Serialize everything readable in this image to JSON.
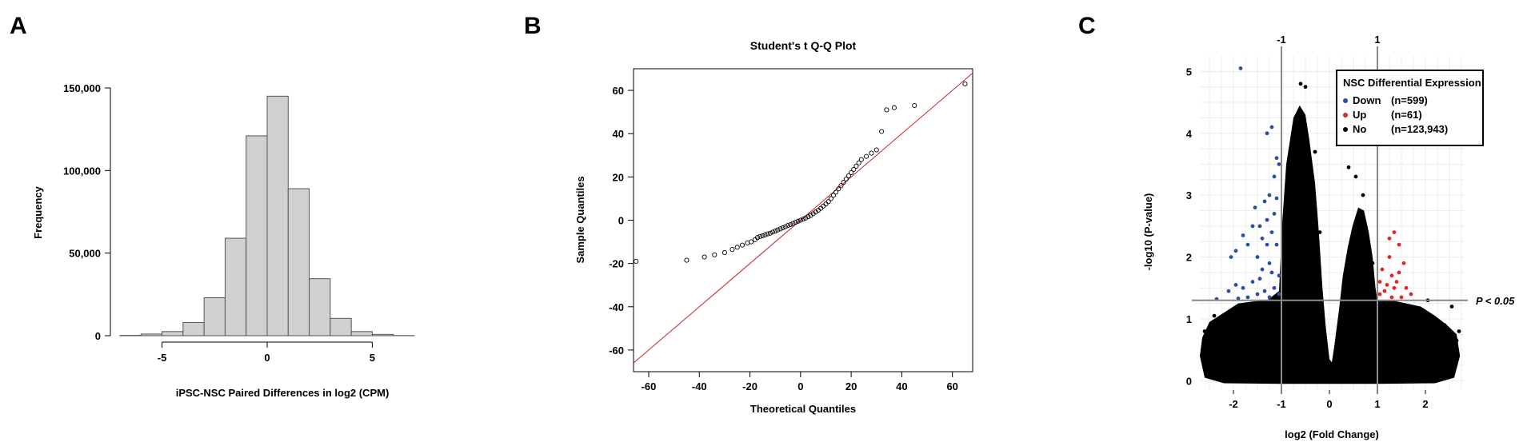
{
  "chart_data": [
    {
      "panel": "A",
      "type": "bar",
      "xlabel": "iPSC-NSC Paired Differences in log2 (CPM)",
      "ylabel": "Frequency",
      "xticks": [
        "-5",
        "0",
        "5"
      ],
      "yticks": [
        "0",
        "50,000",
        "100,000",
        "150,000"
      ],
      "xlim": [
        -7,
        7
      ],
      "ylim": [
        0,
        150000
      ],
      "bin_width": 1,
      "bins": [
        -7,
        -6,
        -5,
        -4,
        -3,
        -2,
        -1,
        0,
        1,
        2,
        3,
        4,
        5,
        6
      ],
      "values": [
        200,
        1000,
        2500,
        8000,
        23000,
        59000,
        121000,
        145000,
        89000,
        34500,
        10500,
        2500,
        800,
        100
      ]
    },
    {
      "panel": "B",
      "type": "scatter",
      "title": "Student's t Q-Q Plot",
      "xlabel": "Theoretical Quantiles",
      "ylabel": "Sample Quantiles",
      "xticks": [
        "-60",
        "-40",
        "-20",
        "0",
        "20",
        "40",
        "60"
      ],
      "yticks": [
        "-60",
        "-40",
        "-20",
        "0",
        "20",
        "40",
        "60"
      ],
      "xlim": [
        -66,
        68
      ],
      "ylim": [
        -70,
        70
      ],
      "reference_line": {
        "slope": 1,
        "intercept": 0,
        "color": "#cc2222"
      },
      "points": [
        [
          -65,
          -19
        ],
        [
          -45,
          -18.5
        ],
        [
          -38,
          -17
        ],
        [
          -34,
          -16
        ],
        [
          -30,
          -15
        ],
        [
          -27,
          -13.5
        ],
        [
          -25,
          -12.5
        ],
        [
          -23,
          -11.5
        ],
        [
          -21,
          -10.5
        ],
        [
          -19.5,
          -10
        ],
        [
          -18,
          -9
        ],
        [
          -17,
          -8
        ],
        [
          -16,
          -7.5
        ],
        [
          -15,
          -7.2
        ],
        [
          -14,
          -6.8
        ],
        [
          -13,
          -6.3
        ],
        [
          -12,
          -6
        ],
        [
          -11,
          -5.5
        ],
        [
          -10,
          -5
        ],
        [
          -9,
          -4.5
        ],
        [
          -8,
          -4
        ],
        [
          -7,
          -3.5
        ],
        [
          -6,
          -3
        ],
        [
          -5,
          -2.4
        ],
        [
          -4,
          -2
        ],
        [
          -3,
          -1.5
        ],
        [
          -2,
          -1
        ],
        [
          -1,
          -0.5
        ],
        [
          0,
          0
        ],
        [
          1,
          0.5
        ],
        [
          2,
          1
        ],
        [
          3,
          1.6
        ],
        [
          4,
          2.2
        ],
        [
          5,
          3
        ],
        [
          6,
          3.8
        ],
        [
          7,
          4.6
        ],
        [
          8,
          5.5
        ],
        [
          9,
          6.5
        ],
        [
          10,
          7.5
        ],
        [
          11,
          8.6
        ],
        [
          12,
          10
        ],
        [
          13,
          11.5
        ],
        [
          14,
          13
        ],
        [
          15,
          14.5
        ],
        [
          16,
          16
        ],
        [
          17,
          17.5
        ],
        [
          18,
          19
        ],
        [
          19,
          20.5
        ],
        [
          20,
          22
        ],
        [
          21,
          23.5
        ],
        [
          22,
          25
        ],
        [
          23,
          26.5
        ],
        [
          24,
          28
        ],
        [
          26,
          29.5
        ],
        [
          28,
          31
        ],
        [
          30,
          32.5
        ],
        [
          32,
          41
        ],
        [
          34,
          51
        ],
        [
          37,
          52
        ],
        [
          45,
          53
        ],
        [
          65,
          63
        ]
      ]
    },
    {
      "panel": "C",
      "type": "scatter",
      "xlabel": "log2 (Fold Change)",
      "ylabel": "-log10 (P-value)",
      "xticks": [
        "-2",
        "-1",
        "0",
        "1",
        "2"
      ],
      "top_ticks": [
        "-1",
        "1"
      ],
      "yticks": [
        "0",
        "1",
        "2",
        "3",
        "4",
        "5"
      ],
      "xlim": [
        -2.7,
        2.8
      ],
      "ylim": [
        -0.15,
        5.25
      ],
      "grid": true,
      "threshold_lines": {
        "x": [
          -1,
          1
        ],
        "y": 1.3
      },
      "threshold_label": "P < 0.05",
      "legend": {
        "title": "NSC Differential Expression:",
        "position": "top-right",
        "entries": [
          {
            "label": "Down",
            "count": "(n=599)",
            "color": "#2a4fa8"
          },
          {
            "label": "Up",
            "count": "(n=61)",
            "color": "#e02828"
          },
          {
            "label": "No",
            "count": "(n=123,943)",
            "color": "#000000"
          }
        ]
      },
      "series": [
        {
          "name": "Down",
          "color": "#2a4fa8",
          "points": [
            [
              -1.85,
              5.05
            ],
            [
              -1.3,
              4.0
            ],
            [
              -1.2,
              4.1
            ],
            [
              -1.1,
              3.6
            ],
            [
              -1.15,
              3.3
            ],
            [
              -1.05,
              3.5
            ],
            [
              -1.25,
              3.0
            ],
            [
              -1.35,
              2.9
            ],
            [
              -1.1,
              2.95
            ],
            [
              -1.6,
              2.5
            ],
            [
              -1.45,
              2.5
            ],
            [
              -1.8,
              2.35
            ],
            [
              -2.05,
              2.0
            ],
            [
              -1.95,
              2.1
            ],
            [
              -1.7,
              2.2
            ],
            [
              -1.3,
              2.6
            ],
            [
              -1.2,
              2.4
            ],
            [
              -1.5,
              2.0
            ],
            [
              -1.4,
              1.8
            ],
            [
              -1.25,
              1.9
            ],
            [
              -1.1,
              2.2
            ],
            [
              -1.05,
              1.7
            ],
            [
              -1.6,
              1.6
            ],
            [
              -1.8,
              1.5
            ],
            [
              -1.95,
              1.55
            ],
            [
              -2.1,
              1.45
            ],
            [
              -1.15,
              1.5
            ],
            [
              -1.35,
              1.45
            ],
            [
              -1.05,
              1.4
            ],
            [
              -1.5,
              1.4
            ],
            [
              -1.7,
              1.35
            ],
            [
              -2.35,
              1.32
            ],
            [
              -1.25,
              1.35
            ],
            [
              -1.9,
              1.33
            ],
            [
              -1.4,
              2.3
            ],
            [
              -1.55,
              2.8
            ],
            [
              -1.15,
              2.7
            ],
            [
              -1.3,
              2.2
            ],
            [
              -1.45,
              1.65
            ],
            [
              -1.2,
              1.75
            ]
          ]
        },
        {
          "name": "Up",
          "color": "#e02828",
          "points": [
            [
              1.35,
              2.4
            ],
            [
              1.45,
              2.2
            ],
            [
              1.25,
              2.0
            ],
            [
              1.55,
              1.9
            ],
            [
              1.3,
              1.7
            ],
            [
              1.4,
              1.6
            ],
            [
              1.2,
              1.55
            ],
            [
              1.6,
              1.5
            ],
            [
              1.05,
              1.4
            ],
            [
              1.15,
              1.45
            ],
            [
              1.5,
              1.35
            ],
            [
              1.7,
              1.4
            ],
            [
              1.1,
              1.8
            ],
            [
              1.3,
              1.35
            ],
            [
              1.05,
              1.6
            ],
            [
              1.25,
              2.3
            ],
            [
              1.45,
              1.75
            ],
            [
              1.35,
              1.5
            ]
          ]
        },
        {
          "name": "No",
          "color": "#000000",
          "points": [
            [
              -0.6,
              4.8
            ],
            [
              -0.5,
              4.75
            ],
            [
              -0.3,
              3.7
            ],
            [
              -0.7,
              3.4
            ],
            [
              0.4,
              3.45
            ],
            [
              0.55,
              3.3
            ],
            [
              0.7,
              3.0
            ],
            [
              0.65,
              2.3
            ],
            [
              0.8,
              2.0
            ],
            [
              0.9,
              1.9
            ],
            [
              -0.2,
              2.4
            ],
            [
              -0.9,
              3.0
            ],
            [
              2.05,
              1.3
            ],
            [
              2.55,
              1.2
            ],
            [
              -2.4,
              1.05
            ],
            [
              -2.6,
              0.8
            ],
            [
              2.7,
              0.8
            ],
            [
              2.5,
              0.5
            ],
            [
              -2.3,
              0.3
            ],
            [
              2.3,
              0.3
            ],
            [
              -2.45,
              0.55
            ],
            [
              2.65,
              0.65
            ],
            [
              -2.55,
              0.25
            ],
            [
              2.4,
              0.9
            ]
          ]
        }
      ]
    }
  ]
}
